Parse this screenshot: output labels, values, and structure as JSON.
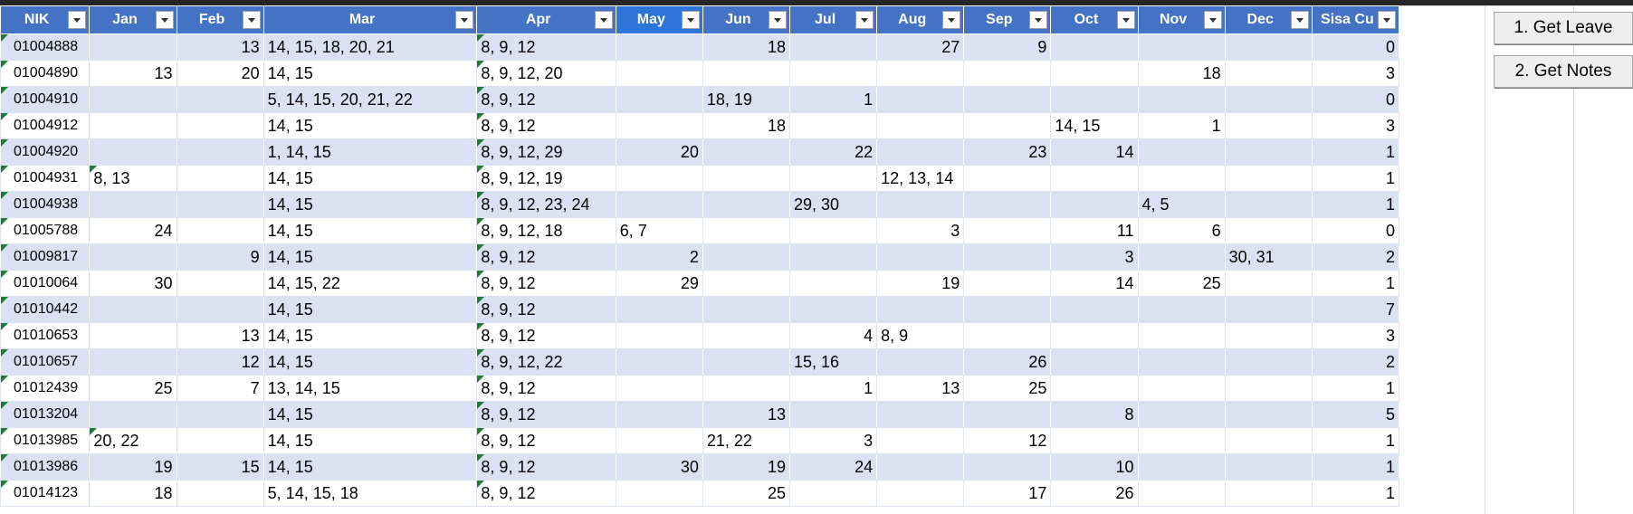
{
  "columns": [
    "NIK",
    "Jan",
    "Feb",
    "Mar",
    "Apr",
    "May",
    "Jun",
    "Jul",
    "Aug",
    "Sep",
    "Oct",
    "Nov",
    "Dec",
    "Sisa Cu"
  ],
  "selected_column": "May",
  "buttons": {
    "get_leave": "1. Get Leave",
    "get_notes": "2. Get Notes"
  },
  "rows": [
    [
      "01004888",
      "",
      "13",
      "14, 15, 18, 20, 21",
      "8, 9, 12",
      "",
      "18",
      "",
      "27",
      "9",
      "",
      "",
      "",
      "0"
    ],
    [
      "01004890",
      "13",
      "20",
      "14, 15",
      "8, 9, 12, 20",
      "",
      "",
      "",
      "",
      "",
      "",
      "18",
      "",
      "3"
    ],
    [
      "01004910",
      "",
      "",
      "5, 14, 15, 20, 21, 22",
      "8, 9, 12",
      "",
      "18, 19",
      "1",
      "",
      "",
      "",
      "",
      "",
      "0"
    ],
    [
      "01004912",
      "",
      "",
      "14, 15",
      "8, 9, 12",
      "",
      "18",
      "",
      "",
      "",
      "14, 15",
      "1",
      "",
      "3"
    ],
    [
      "01004920",
      "",
      "",
      "1, 14, 15",
      "8, 9, 12, 29",
      "20",
      "",
      "22",
      "",
      "23",
      "14",
      "",
      "",
      "1"
    ],
    [
      "01004931",
      "8, 13",
      "",
      "14, 15",
      "8, 9, 12, 19",
      "",
      "",
      "",
      "12, 13, 14",
      "",
      "",
      "",
      "",
      "1"
    ],
    [
      "01004938",
      "",
      "",
      "14, 15",
      "8, 9, 12, 23, 24",
      "",
      "",
      "29, 30",
      "",
      "",
      "",
      "4, 5",
      "",
      "1"
    ],
    [
      "01005788",
      "24",
      "",
      "14, 15",
      "8, 9, 12, 18",
      "6, 7",
      "",
      "",
      "3",
      "",
      "11",
      "6",
      "",
      "0"
    ],
    [
      "01009817",
      "",
      "9",
      "14, 15",
      "8, 9, 12",
      "2",
      "",
      "",
      "",
      "",
      "3",
      "",
      "30, 31",
      "2"
    ],
    [
      "01010064",
      "30",
      "",
      "14, 15, 22",
      "8, 9, 12",
      "29",
      "",
      "",
      "19",
      "",
      "14",
      "25",
      "",
      "1"
    ],
    [
      "01010442",
      "",
      "",
      "14, 15",
      "8, 9, 12",
      "",
      "",
      "",
      "",
      "",
      "",
      "",
      "",
      "7"
    ],
    [
      "01010653",
      "",
      "13",
      "14, 15",
      "8, 9, 12",
      "",
      "",
      "4",
      "8, 9",
      "",
      "",
      "",
      "",
      "3"
    ],
    [
      "01010657",
      "",
      "12",
      "14, 15",
      "8, 9, 12, 22",
      "",
      "",
      "15, 16",
      "",
      "26",
      "",
      "",
      "",
      "2"
    ],
    [
      "01012439",
      "25",
      "7",
      "13, 14, 15",
      "8, 9, 12",
      "",
      "",
      "1",
      "13",
      "25",
      "",
      "",
      "",
      "1"
    ],
    [
      "01013204",
      "",
      "",
      "14, 15",
      "8, 9, 12",
      "",
      "13",
      "",
      "",
      "",
      "8",
      "",
      "",
      "5"
    ],
    [
      "01013985",
      "20, 22",
      "",
      "14, 15",
      "8, 9, 12",
      "",
      "21, 22",
      "3",
      "",
      "12",
      "",
      "",
      "",
      "1"
    ],
    [
      "01013986",
      "19",
      "15",
      "14, 15",
      "8, 9, 12",
      "30",
      "19",
      "24",
      "",
      "",
      "10",
      "",
      "",
      "1"
    ],
    [
      "01014123",
      "18",
      "",
      "5, 14, 15, 18",
      "8, 9, 12",
      "",
      "25",
      "",
      "",
      "17",
      "26",
      "",
      "",
      "1"
    ]
  ]
}
